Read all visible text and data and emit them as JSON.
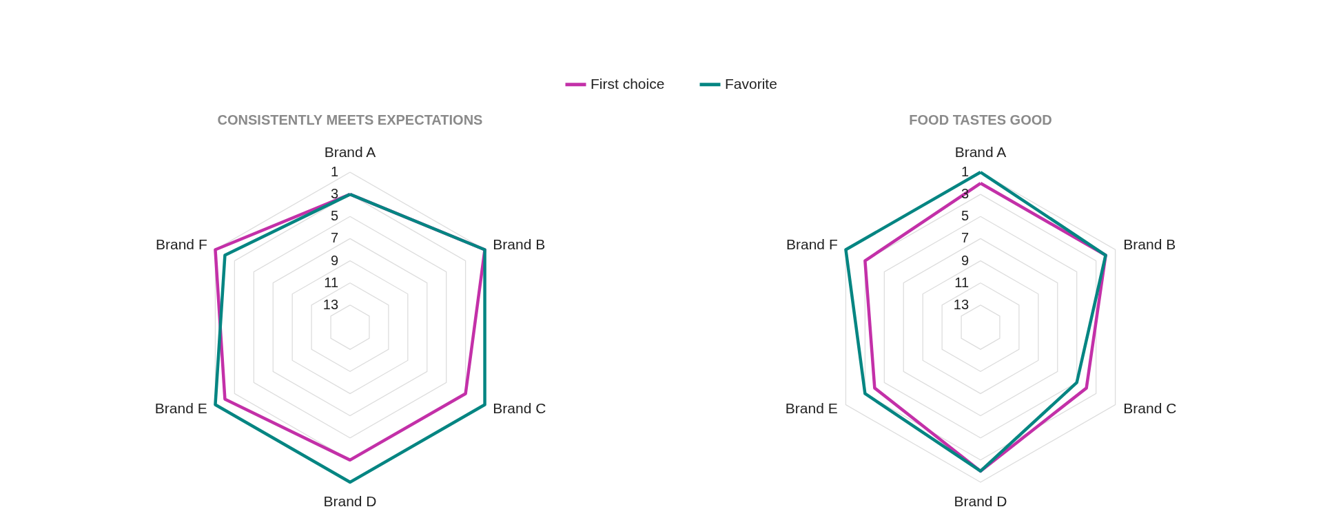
{
  "chart_data": [
    {
      "type": "radar",
      "title": "CONSISTENTLY MEETS EXPECTATIONS",
      "categories": [
        "Brand A",
        "Brand B",
        "Brand C",
        "Brand D",
        "Brand E",
        "Brand F"
      ],
      "ylim": [
        15,
        1
      ],
      "yticks": [
        1,
        3,
        5,
        7,
        9,
        11,
        13
      ],
      "grid": true,
      "legend": "top",
      "marker": "none",
      "line_style": "solid",
      "series": [
        {
          "name": "First choice",
          "color": "#c330a8",
          "values": [
            3,
            1,
            3,
            3,
            2,
            1
          ]
        },
        {
          "name": "Favorite",
          "color": "#058582",
          "values": [
            3,
            1,
            1,
            1,
            1,
            2
          ]
        }
      ]
    },
    {
      "type": "radar",
      "title": "FOOD TASTES GOOD",
      "categories": [
        "Brand A",
        "Brand B",
        "Brand C",
        "Brand D",
        "Brand E",
        "Brand F"
      ],
      "ylim": [
        15,
        1
      ],
      "yticks": [
        1,
        3,
        5,
        7,
        9,
        11,
        13
      ],
      "grid": true,
      "legend": "top",
      "marker": "none",
      "line_style": "solid",
      "series": [
        {
          "name": "First choice",
          "color": "#c330a8",
          "values": [
            2,
            2,
            4,
            2,
            4,
            3
          ]
        },
        {
          "name": "Favorite",
          "color": "#058582",
          "values": [
            1,
            2,
            5,
            2,
            3,
            1
          ]
        }
      ]
    }
  ]
}
